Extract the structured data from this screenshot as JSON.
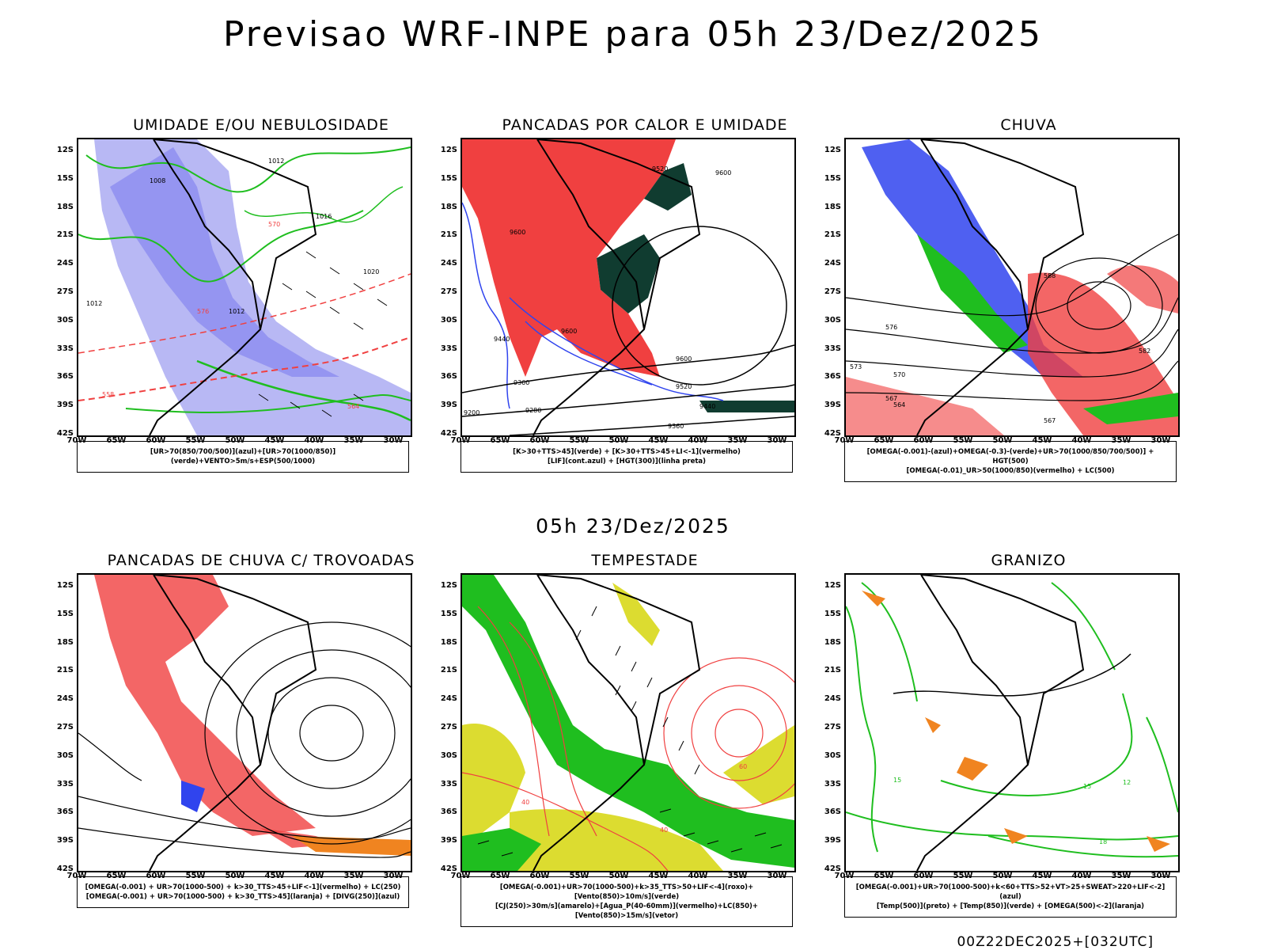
{
  "main_title": "Previsao WRF-INPE  para 05h 23/Dez/2025",
  "mid_title": "05h 23/Dez/2025",
  "footer": "00Z22DEC2025+[032UTC]",
  "lat_labels": [
    "12S",
    "15S",
    "18S",
    "21S",
    "24S",
    "27S",
    "30S",
    "33S",
    "36S",
    "39S",
    "42S"
  ],
  "lon_labels": [
    "70W",
    "65W",
    "60W",
    "55W",
    "50W",
    "45W",
    "40W",
    "35W",
    "30W"
  ],
  "colors": {
    "blue": "#3044ee",
    "lightblue": "#b8b8f4",
    "green": "#1fbe1f",
    "red": "#f04040",
    "darkgreen": "#103c30",
    "yellow": "#dcdc30",
    "orange": "#f08420",
    "magenta": "#b020b0"
  },
  "panels": [
    {
      "title": "UMIDADE E/OU NEBULOSIDADE",
      "caption": [
        "[UR>70(850/700/500)](azul)+[UR>70(1000/850)](verde)+VENTO>5m/s+ESP(500/1000)"
      ],
      "contour_labels": [
        "1008",
        "1012",
        "1016",
        "1020",
        "576",
        "570",
        "564",
        "558"
      ]
    },
    {
      "title": "PANCADAS POR CALOR E UMIDADE",
      "caption": [
        "[K>30+TTS>45](verde) + [K>30+TTS>45+LI<-1](vermelho)",
        "[LIF](cont.azul) + [HGT(300)](linha preta)"
      ],
      "contour_labels": [
        "9600",
        "9520",
        "9440",
        "9360",
        "9280",
        "9200"
      ]
    },
    {
      "title": "CHUVA",
      "caption": [
        "[OMEGA(-0.001)-(azul)+OMEGA(-0.3)-(verde)+UR>70(1000/850/700/500)] + HGT(500)",
        "[OMEGA(-0.01)_UR>50(1000/850)(vermelho) + LC(500)"
      ],
      "contour_labels": [
        "582",
        "576",
        "573",
        "570",
        "567",
        "564"
      ]
    },
    {
      "title": "PANCADAS DE CHUVA C/ TROVOADAS",
      "caption": [
        "[OMEGA(-0.001) + UR>70(1000-500) + k>30_TTS>45+LIF<-1](vermelho) + LC(250)",
        "[OMEGA(-0.001) + UR>70(1000-500) + k>30_TTS>45](laranja) + [DIVG(250)](azul)"
      ],
      "contour_labels": []
    },
    {
      "title": "TEMPESTADE",
      "caption": [
        "[OMEGA(-0.001)+UR>70(1000-500)+k>35_TTS>50+LIF<-4](roxo)+[Vento(850)>10m/s](verde)",
        "[CJ(250)>30m/s](amarelo)+[Agua_P(40-60mm)](vermelho)+LC(850)+[Vento(850)>15m/s](vetor)"
      ],
      "contour_labels": [
        "40",
        "60"
      ]
    },
    {
      "title": "GRANIZO",
      "caption": [
        "[OMEGA(-0.001)+UR>70(1000-500)+k<60+TTS>52+VT>25+SWEAT>220+LIF<-2](azul)",
        "[Temp(500)](preto) + [Temp(850)](verde) + [OMEGA(500)<-2](laranja)"
      ],
      "contour_labels": [
        "15",
        "12",
        "18"
      ]
    }
  ]
}
